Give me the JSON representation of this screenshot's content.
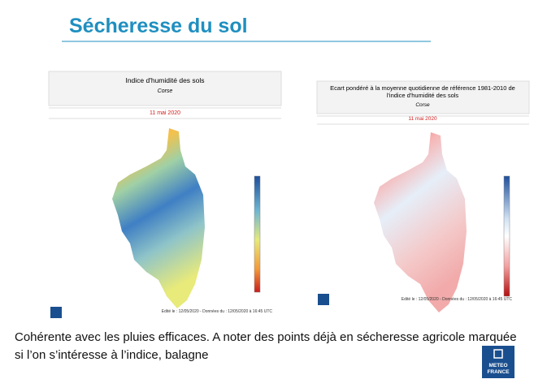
{
  "header": {
    "title": "Sécheresse du sol"
  },
  "panels": [
    {
      "title": "Indice d'humidité des sols",
      "subtitle": "Corse",
      "date": "11 mai 2020",
      "footer": "Edité le : 12/05/2020 - Données du : 12/05/2020 à 16:45 UTC"
    },
    {
      "title": "Ecart pondéré à la moyenne quotidienne de référence 1981-2010 de l'indice d'humidité des sols",
      "subtitle": "Corse",
      "date": "11 mai 2020",
      "footer": "Edité le : 12/05/2020 - Données du : 12/05/2020 à 16:45 UTC"
    }
  ],
  "caption": {
    "lines": [
      "Cohérente avec les pluies efficaces. A noter des points déjà en sécheresse agricole marquée",
      "si l’on s’intéresse à l’indice, balagne"
    ]
  },
  "logo": {
    "line1": "METEO",
    "line2": "FRANCE"
  }
}
